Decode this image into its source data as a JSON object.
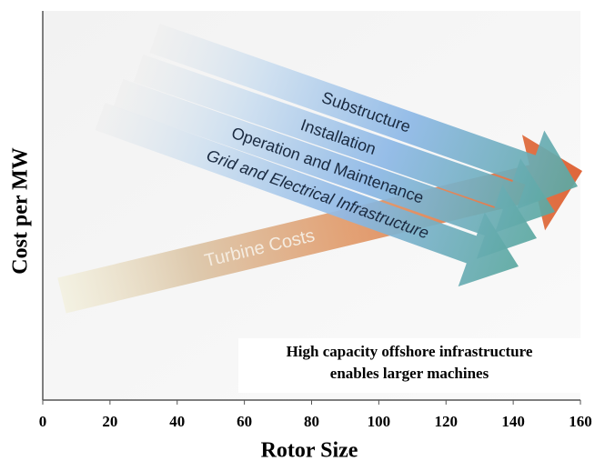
{
  "chart_data": {
    "type": "concept-arrows",
    "xlabel": "Rotor Size",
    "ylabel": "Cost per MW",
    "xlim": [
      0,
      160
    ],
    "xticks": [
      0,
      20,
      40,
      60,
      80,
      100,
      120,
      140,
      160
    ],
    "arrows": [
      {
        "label": "Substructure"
      },
      {
        "label": "Installation"
      },
      {
        "label": "Operation and Maintenance"
      },
      {
        "label": "Grid and Electrical Infrastructure"
      },
      {
        "label": "Turbine Costs"
      }
    ],
    "annotation": [
      "High capacity offshore infrastructure",
      "enables larger machines"
    ]
  }
}
